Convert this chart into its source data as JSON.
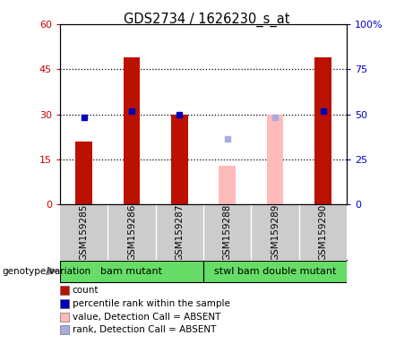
{
  "title": "GDS2734 / 1626230_s_at",
  "samples": [
    "GSM159285",
    "GSM159286",
    "GSM159287",
    "GSM159288",
    "GSM159289",
    "GSM159290"
  ],
  "count_values": [
    21,
    49,
    30,
    null,
    null,
    49
  ],
  "rank_values": [
    29,
    31,
    30,
    null,
    null,
    31
  ],
  "absent_value": [
    null,
    null,
    null,
    13,
    30,
    null
  ],
  "absent_rank": [
    null,
    null,
    null,
    22,
    29,
    null
  ],
  "ylim_left": [
    0,
    60
  ],
  "ylim_right": [
    0,
    100
  ],
  "yticks_left": [
    0,
    15,
    30,
    45,
    60
  ],
  "ytick_labels_left": [
    "0",
    "15",
    "30",
    "45",
    "60"
  ],
  "yticks_right": [
    0,
    25,
    50,
    75,
    100
  ],
  "ytick_labels_right": [
    "0",
    "25",
    "50",
    "75",
    "100%"
  ],
  "bar_color_present": "#bb1100",
  "bar_color_absent_value": "#ffbbbb",
  "rank_color_present": "#0000bb",
  "rank_color_absent": "#aaaadd",
  "bar_width": 0.35,
  "legend_items": [
    {
      "label": "count",
      "color": "#bb1100"
    },
    {
      "label": "percentile rank within the sample",
      "color": "#0000bb"
    },
    {
      "label": "value, Detection Call = ABSENT",
      "color": "#ffbbbb"
    },
    {
      "label": "rank, Detection Call = ABSENT",
      "color": "#aaaadd"
    }
  ],
  "group_label_text": "genotype/variation",
  "sample_bg_color": "#cccccc",
  "green_color": "#66dd66",
  "plot_bg": "#ffffff",
  "grid_lines": [
    15,
    30,
    45
  ],
  "bam_mutant_range": [
    0,
    2
  ],
  "stwl_range": [
    3,
    5
  ]
}
